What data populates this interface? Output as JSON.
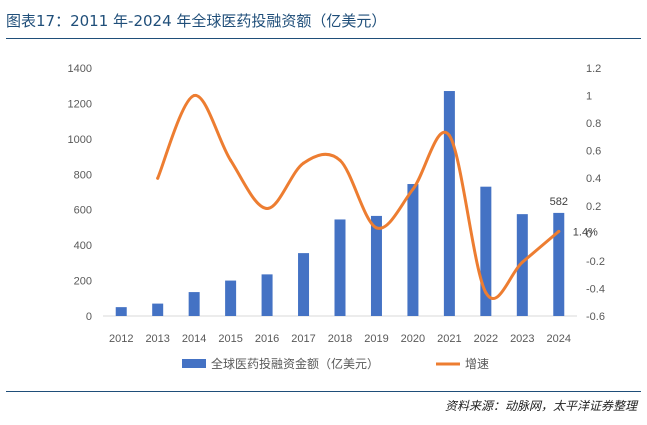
{
  "figure": {
    "title": "图表17：2011 年-2024 年全球医药投融资额（亿美元）",
    "source": "资料来源：动脉网，太平洋证券整理"
  },
  "chart_data": {
    "type": "bar",
    "title": "图表17：2011 年-2024 年全球医药投融资额（亿美元）",
    "categories": [
      "2012",
      "2013",
      "2014",
      "2015",
      "2016",
      "2017",
      "2018",
      "2019",
      "2020",
      "2021",
      "2022",
      "2023",
      "2024"
    ],
    "series": [
      {
        "name": "全球医药投融资金额（亿美元）",
        "type": "bar",
        "axis": "left",
        "color": "#4472c4",
        "values": [
          50,
          70,
          135,
          200,
          235,
          355,
          545,
          565,
          745,
          1270,
          730,
          575,
          582
        ]
      },
      {
        "name": "增速",
        "type": "line",
        "axis": "right",
        "smooth": true,
        "color": "#ed7d31",
        "values": [
          null,
          0.4,
          1.0,
          0.53,
          0.18,
          0.51,
          0.53,
          0.04,
          0.32,
          0.71,
          -0.43,
          -0.21,
          0.014
        ]
      }
    ],
    "y_left": {
      "min": 0,
      "max": 1400,
      "ticks": [
        0,
        200,
        400,
        600,
        800,
        1000,
        1200,
        1400
      ]
    },
    "y_right": {
      "min": -0.6,
      "max": 1.2,
      "ticks": [
        -0.6,
        -0.4,
        -0.2,
        0,
        0.2,
        0.4,
        0.6,
        0.8,
        1,
        1.2
      ],
      "tick_labels": [
        "-0.6",
        "-0.4",
        "-0.2",
        "0",
        "0.2",
        "0.4",
        "0.6",
        "0.8",
        "1",
        "1.2"
      ]
    },
    "annotations": [
      {
        "text": "582",
        "series": 0,
        "index": 12
      },
      {
        "text": "1.4%",
        "series": 1,
        "index": 12
      }
    ],
    "grid": false,
    "legend_position": "bottom"
  },
  "colors": {
    "title": "#1f4e79",
    "bar": "#4472c4",
    "line": "#ed7d31",
    "axis_text": "#595959"
  }
}
